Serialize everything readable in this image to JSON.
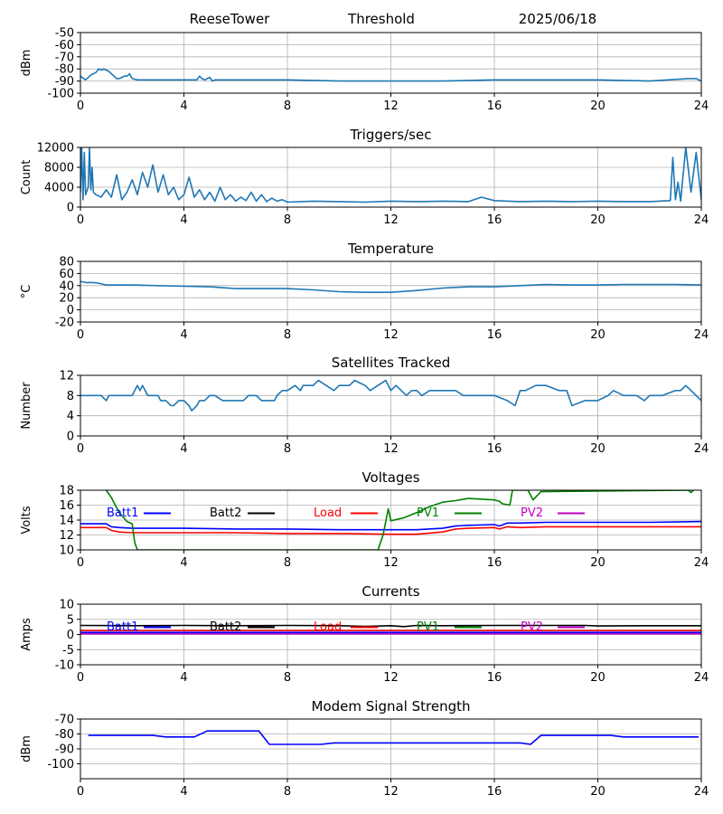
{
  "header": {
    "station": "ReeseTower",
    "mode": "Threshold",
    "date": "2025/06/18"
  },
  "chart_data": [
    {
      "id": "signal",
      "type": "line",
      "title": "",
      "ylabel": "dBm",
      "xlim": [
        0,
        24
      ],
      "ylim": [
        -100,
        -50
      ],
      "xticks": [
        0,
        4,
        8,
        12,
        16,
        20,
        24
      ],
      "yticks": [
        -100,
        -90,
        -80,
        -70,
        -60,
        -50
      ],
      "grid": true,
      "series": [
        {
          "color": "#1f77b4",
          "x": [
            0,
            0.2,
            0.4,
            0.6,
            0.7,
            0.8,
            0.9,
            1.0,
            1.1,
            1.2,
            1.3,
            1.4,
            1.5,
            1.6,
            1.7,
            1.8,
            1.9,
            2.0,
            2.2,
            2.5,
            3,
            4,
            4.5,
            4.6,
            4.7,
            4.8,
            5.0,
            5.1,
            5.2,
            5.4,
            6,
            8,
            10,
            12,
            14,
            16,
            18,
            20,
            22,
            23.5,
            23.8,
            24
          ],
          "y": [
            -86,
            -89,
            -85,
            -83,
            -80,
            -81,
            -80,
            -81,
            -82,
            -84,
            -86,
            -88,
            -88,
            -87,
            -86,
            -86,
            -84,
            -88,
            -89,
            -89,
            -89,
            -89,
            -89,
            -86,
            -88,
            -89,
            -87,
            -90,
            -89,
            -89,
            -89,
            -89,
            -90,
            -90,
            -90,
            -89,
            -89,
            -89,
            -90,
            -88,
            -88,
            -90
          ]
        }
      ]
    },
    {
      "id": "triggers",
      "type": "line",
      "title": "Triggers/sec",
      "ylabel": "Count",
      "xlim": [
        0,
        24
      ],
      "ylim": [
        0,
        12000
      ],
      "xticks": [
        0,
        4,
        8,
        12,
        16,
        20,
        24
      ],
      "yticks": [
        0,
        4000,
        8000,
        12000
      ],
      "grid": true,
      "series": [
        {
          "color": "#1f77b4",
          "x": [
            0,
            0.05,
            0.1,
            0.15,
            0.2,
            0.3,
            0.35,
            0.4,
            0.45,
            0.5,
            0.6,
            0.8,
            1.0,
            1.2,
            1.4,
            1.6,
            1.8,
            2.0,
            2.2,
            2.4,
            2.6,
            2.8,
            3.0,
            3.2,
            3.4,
            3.6,
            3.8,
            4.0,
            4.2,
            4.4,
            4.6,
            4.8,
            5.0,
            5.2,
            5.4,
            5.6,
            5.8,
            6.0,
            6.2,
            6.4,
            6.6,
            6.8,
            7.0,
            7.2,
            7.4,
            7.6,
            7.8,
            8.0,
            9,
            10,
            11,
            12,
            13,
            14,
            15,
            15.5,
            16,
            17,
            18,
            19,
            20,
            21,
            22,
            22.8,
            22.9,
            23.0,
            23.1,
            23.2,
            23.4,
            23.6,
            23.8,
            24
          ],
          "y": [
            3000,
            12000,
            1500,
            11000,
            2500,
            4000,
            12000,
            3500,
            8000,
            3000,
            2500,
            2000,
            3500,
            2000,
            6500,
            1500,
            3000,
            5500,
            2500,
            7000,
            4000,
            8500,
            3000,
            6500,
            2500,
            4000,
            1500,
            2500,
            6000,
            2000,
            3500,
            1500,
            3000,
            1200,
            4000,
            1500,
            2500,
            1200,
            2000,
            1300,
            3000,
            1200,
            2500,
            1100,
            1800,
            1200,
            1500,
            1000,
            1200,
            1100,
            1000,
            1200,
            1100,
            1200,
            1100,
            2000,
            1300,
            1100,
            1200,
            1100,
            1200,
            1100,
            1100,
            1300,
            10000,
            1500,
            5000,
            1200,
            12000,
            3000,
            11000,
            1500
          ]
        }
      ]
    },
    {
      "id": "temperature",
      "type": "line",
      "title": "Temperature",
      "ylabel": "°C",
      "xlim": [
        0,
        24
      ],
      "ylim": [
        -20,
        80
      ],
      "xticks": [
        0,
        4,
        8,
        12,
        16,
        20,
        24
      ],
      "yticks": [
        -20,
        0,
        20,
        40,
        60,
        80
      ],
      "grid": true,
      "series": [
        {
          "color": "#1f77b4",
          "x": [
            0,
            0.2,
            0.5,
            0.7,
            1.0,
            2,
            3,
            4,
            5,
            6,
            7,
            8,
            9,
            10,
            11,
            12,
            13,
            14,
            15,
            16,
            17,
            18,
            19,
            20,
            21,
            22,
            23,
            24
          ],
          "y": [
            47,
            45,
            45,
            44,
            41,
            41,
            40,
            39,
            38,
            35,
            35,
            35,
            33,
            30,
            29,
            29,
            32,
            36,
            38,
            38,
            40,
            42,
            41,
            41,
            42,
            42,
            42,
            41
          ]
        }
      ]
    },
    {
      "id": "satellites",
      "type": "line",
      "title": "Satellites Tracked",
      "ylabel": "Number",
      "xlim": [
        0,
        24
      ],
      "ylim": [
        0,
        12
      ],
      "xticks": [
        0,
        4,
        8,
        12,
        16,
        20,
        24
      ],
      "yticks": [
        0,
        4,
        8,
        12
      ],
      "grid": true,
      "series": [
        {
          "color": "#1f77b4",
          "x": [
            0,
            0.8,
            1.0,
            1.1,
            1.3,
            2.0,
            2.1,
            2.2,
            2.3,
            2.4,
            2.5,
            2.6,
            3.0,
            3.1,
            3.3,
            3.5,
            3.6,
            3.8,
            4.0,
            4.2,
            4.3,
            4.5,
            4.6,
            4.8,
            5.0,
            5.2,
            5.5,
            6.0,
            6.3,
            6.5,
            6.8,
            7.0,
            7.5,
            7.6,
            7.8,
            8.0,
            8.3,
            8.5,
            8.6,
            8.8,
            9.0,
            9.2,
            9.5,
            9.8,
            10.0,
            10.4,
            10.6,
            11,
            11.2,
            11.5,
            11.8,
            12,
            12.2,
            12.4,
            12.6,
            12.8,
            13,
            13.2,
            13.5,
            14,
            14.5,
            14.8,
            15,
            15.5,
            16,
            16.5,
            16.8,
            17,
            17.2,
            17.6,
            18,
            18.5,
            18.8,
            19,
            19.5,
            20,
            20.4,
            20.6,
            21,
            21.5,
            21.8,
            22,
            22.5,
            23,
            23.2,
            23.4,
            23.6,
            23.8,
            24
          ],
          "y": [
            8,
            8,
            7,
            8,
            8,
            8,
            9,
            10,
            9,
            10,
            9,
            8,
            8,
            7,
            7,
            6,
            6,
            7,
            7,
            6,
            5,
            6,
            7,
            7,
            8,
            8,
            7,
            7,
            7,
            8,
            8,
            7,
            7,
            8,
            9,
            9,
            10,
            9,
            10,
            10,
            10,
            11,
            10,
            9,
            10,
            10,
            11,
            10,
            9,
            10,
            11,
            9,
            10,
            9,
            8,
            9,
            9,
            8,
            9,
            9,
            9,
            8,
            8,
            8,
            8,
            7,
            6,
            9,
            9,
            10,
            10,
            9,
            9,
            6,
            7,
            7,
            8,
            9,
            8,
            8,
            7,
            8,
            8,
            9,
            9,
            10,
            9,
            8,
            7
          ]
        }
      ]
    },
    {
      "id": "voltages",
      "type": "line",
      "title": "Voltages",
      "ylabel": "Volts",
      "xlim": [
        0,
        24
      ],
      "ylim": [
        10,
        18
      ],
      "xticks": [
        0,
        4,
        8,
        12,
        16,
        20,
        24
      ],
      "yticks": [
        10,
        12,
        14,
        16,
        18
      ],
      "grid": true,
      "legend": [
        "Batt1",
        "Batt2",
        "Load",
        "PV1",
        "PV2"
      ],
      "series": [
        {
          "name": "Batt1",
          "color": "#0000ff",
          "x": [
            0,
            1,
            1.2,
            1.5,
            2,
            4,
            6,
            8,
            10,
            12,
            13,
            14,
            14.5,
            15,
            16,
            16.2,
            16.5,
            17,
            18,
            20,
            22,
            24
          ],
          "y": [
            13.5,
            13.5,
            13.1,
            13.0,
            12.9,
            12.9,
            12.8,
            12.8,
            12.7,
            12.7,
            12.7,
            12.9,
            13.2,
            13.3,
            13.4,
            13.2,
            13.6,
            13.6,
            13.7,
            13.7,
            13.7,
            13.8
          ]
        },
        {
          "name": "Load",
          "color": "#ff0000",
          "x": [
            0,
            1,
            1.2,
            1.5,
            2,
            4,
            6,
            8,
            10,
            12,
            13,
            14,
            14.5,
            15,
            16,
            16.2,
            16.5,
            17,
            18,
            20,
            22,
            24
          ],
          "y": [
            13.0,
            13.0,
            12.6,
            12.4,
            12.3,
            12.3,
            12.3,
            12.2,
            12.2,
            12.1,
            12.1,
            12.4,
            12.8,
            12.9,
            13.0,
            12.8,
            13.1,
            13.0,
            13.1,
            13.1,
            13.1,
            13.1
          ]
        },
        {
          "name": "PV1",
          "color": "#008000",
          "x": [
            1.0,
            1.2,
            1.5,
            1.8,
            2.0,
            2.1,
            2.2,
            11.5,
            11.7,
            11.9,
            12.0,
            12.5,
            13.0,
            13.5,
            14.0,
            14.5,
            15.0,
            15.5,
            16.0,
            16.2,
            16.3,
            16.6,
            16.7,
            17.3,
            17.5,
            17.8,
            23.5,
            23.6,
            23.7
          ],
          "y": [
            18,
            17,
            15,
            13.8,
            13.5,
            11,
            10,
            10,
            12,
            15.5,
            13.9,
            14.3,
            15.0,
            15.8,
            16.4,
            16.6,
            16.9,
            16.8,
            16.7,
            16.5,
            16.2,
            16,
            18,
            18,
            16.7,
            17.8,
            18,
            17.7,
            18
          ]
        }
      ]
    },
    {
      "id": "currents",
      "type": "line",
      "title": "Currents",
      "ylabel": "Amps",
      "xlim": [
        0,
        24
      ],
      "ylim": [
        -10,
        10
      ],
      "xticks": [
        0,
        4,
        8,
        12,
        16,
        20,
        24
      ],
      "yticks": [
        -10,
        -5,
        0,
        5,
        10
      ],
      "grid": true,
      "legend": [
        "Batt1",
        "Batt2",
        "Load",
        "PV1",
        "PV2"
      ],
      "series": [
        {
          "name": "Batt2",
          "color": "#000000",
          "x": [
            0,
            2,
            4,
            6,
            8,
            10,
            11,
            12,
            12.5,
            13,
            14,
            16,
            18,
            19.5,
            20,
            22,
            24
          ],
          "y": [
            3.0,
            2.9,
            3.0,
            2.9,
            3.0,
            2.9,
            2.7,
            2.9,
            2.6,
            3.0,
            2.9,
            3.0,
            3.0,
            3.0,
            2.8,
            2.9,
            2.9
          ]
        },
        {
          "name": "Load",
          "color": "#ff0000",
          "x": [
            0,
            24
          ],
          "y": [
            1.3,
            1.3
          ]
        },
        {
          "name": "Batt1",
          "color": "#0000ff",
          "x": [
            0,
            24
          ],
          "y": [
            0.7,
            0.7
          ]
        },
        {
          "name": "PV2",
          "color": "#bf00bf",
          "x": [
            0,
            24
          ],
          "y": [
            0.2,
            0.2
          ]
        }
      ]
    },
    {
      "id": "modem",
      "type": "line",
      "title": "Modem Signal Strength",
      "ylabel": "dBm",
      "xlim": [
        0,
        24
      ],
      "ylim": [
        -110,
        -70
      ],
      "xticks": [
        0,
        4,
        8,
        12,
        16,
        20,
        24
      ],
      "yticks": [
        -100,
        -90,
        -80,
        -70
      ],
      "grid": true,
      "series": [
        {
          "color": "#0000ff",
          "x": [
            0.3,
            2.8,
            3.3,
            4.4,
            4.9,
            6.9,
            7.3,
            9.3,
            9.8,
            17.0,
            17.4,
            17.8,
            20.5,
            21.0,
            23.9
          ],
          "y": [
            -81,
            -81,
            -82,
            -82,
            -78,
            -78,
            -87,
            -87,
            -86,
            -86,
            -87,
            -81,
            -81,
            -82,
            -82
          ]
        }
      ]
    }
  ]
}
